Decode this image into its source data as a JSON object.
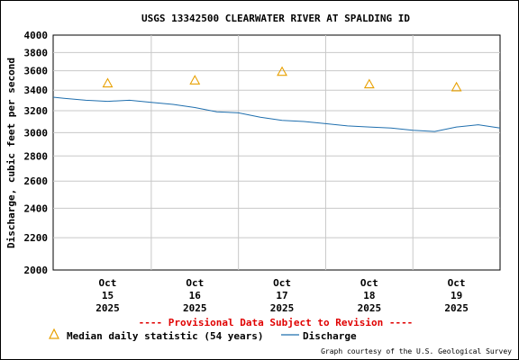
{
  "chart_data": {
    "type": "line",
    "title": "USGS 13342500 CLEARWATER RIVER AT SPALDING ID",
    "ylabel": "Discharge, cubic feet per second",
    "xlabel": "",
    "ylim": [
      2000,
      4000
    ],
    "y_scale": "log",
    "yticks": [
      2000,
      2200,
      2400,
      2600,
      2800,
      3000,
      3200,
      3400,
      3600,
      3800,
      4000
    ],
    "xlim": [
      "2025-10-14 09:00",
      "2025-10-19 12:00"
    ],
    "x_ticks": [
      {
        "date": "2025-10-15",
        "l1": "Oct",
        "l2": "15",
        "l3": "2025"
      },
      {
        "date": "2025-10-16",
        "l1": "Oct",
        "l2": "16",
        "l3": "2025"
      },
      {
        "date": "2025-10-17",
        "l1": "Oct",
        "l2": "17",
        "l3": "2025"
      },
      {
        "date": "2025-10-18",
        "l1": "Oct",
        "l2": "18",
        "l3": "2025"
      },
      {
        "date": "2025-10-19",
        "l1": "Oct",
        "l2": "19",
        "l3": "2025"
      }
    ],
    "grid": true,
    "series": [
      {
        "name": "Median daily statistic (54 years)",
        "kind": "marker",
        "marker": "triangle",
        "color": "#e8a000",
        "points": [
          {
            "x": "2025-10-15",
            "y": 3470
          },
          {
            "x": "2025-10-16",
            "y": 3500
          },
          {
            "x": "2025-10-17",
            "y": 3590
          },
          {
            "x": "2025-10-18",
            "y": 3460
          },
          {
            "x": "2025-10-19",
            "y": 3430
          }
        ]
      },
      {
        "name": "Discharge",
        "kind": "line",
        "color": "#1f6fae",
        "points": [
          {
            "x": "2025-10-14 09:00",
            "y": 3330
          },
          {
            "x": "2025-10-14 12:00",
            "y": 3320
          },
          {
            "x": "2025-10-14 18:00",
            "y": 3300
          },
          {
            "x": "2025-10-15 00:00",
            "y": 3290
          },
          {
            "x": "2025-10-15 06:00",
            "y": 3300
          },
          {
            "x": "2025-10-15 12:00",
            "y": 3280
          },
          {
            "x": "2025-10-15 18:00",
            "y": 3260
          },
          {
            "x": "2025-10-16 00:00",
            "y": 3230
          },
          {
            "x": "2025-10-16 06:00",
            "y": 3190
          },
          {
            "x": "2025-10-16 12:00",
            "y": 3180
          },
          {
            "x": "2025-10-16 18:00",
            "y": 3140
          },
          {
            "x": "2025-10-17 00:00",
            "y": 3110
          },
          {
            "x": "2025-10-17 06:00",
            "y": 3100
          },
          {
            "x": "2025-10-17 12:00",
            "y": 3080
          },
          {
            "x": "2025-10-17 18:00",
            "y": 3060
          },
          {
            "x": "2025-10-18 00:00",
            "y": 3050
          },
          {
            "x": "2025-10-18 06:00",
            "y": 3040
          },
          {
            "x": "2025-10-18 12:00",
            "y": 3020
          },
          {
            "x": "2025-10-18 18:00",
            "y": 3010
          },
          {
            "x": "2025-10-19 00:00",
            "y": 3050
          },
          {
            "x": "2025-10-19 06:00",
            "y": 3070
          },
          {
            "x": "2025-10-19 12:00",
            "y": 3040
          }
        ]
      }
    ]
  },
  "provisional_text": "---- Provisional Data Subject to Revision ----",
  "legend": {
    "median_label": "Median daily statistic (54 years)",
    "discharge_label": "Discharge"
  },
  "credit": "Graph courtesy of the U.S. Geological Survey"
}
